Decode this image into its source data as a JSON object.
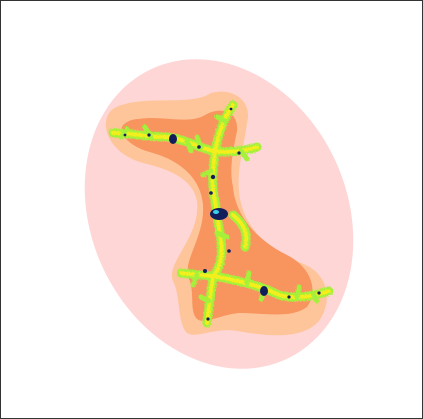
{
  "viewer": {
    "colors": {
      "background": "#ffffff",
      "border": "#333333",
      "outer_level": "#ffd6d6",
      "middle_level": "#ffc59a",
      "inner_level": "#f8955f",
      "edge_level": "#a4f03a",
      "filament": "#f3ee1e",
      "deep": "#121e5c",
      "cyan": "#39d3e9"
    },
    "icon": "julia-set-fractal"
  }
}
